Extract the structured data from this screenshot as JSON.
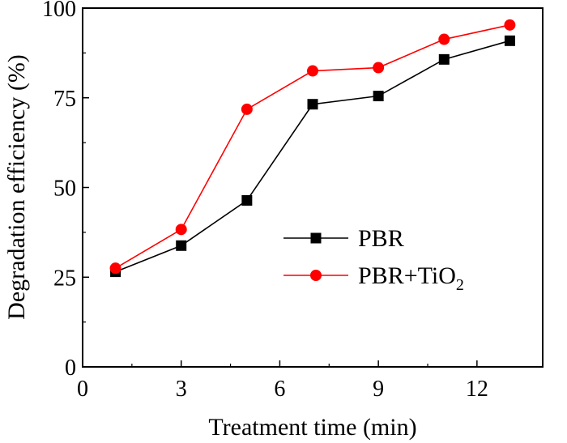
{
  "chart_data": {
    "type": "line",
    "title": "",
    "xlabel": "Treatment time (min)",
    "ylabel": "Degradation efficiency (%)",
    "xlim": [
      0,
      14
    ],
    "ylim": [
      0,
      100
    ],
    "xticks": [
      0,
      3,
      6,
      9,
      12
    ],
    "yticks": [
      0,
      25,
      50,
      75,
      100
    ],
    "grid": false,
    "legend_position": "center-right",
    "series": [
      {
        "name": "PBR",
        "color": "#000000",
        "marker": "square",
        "x": [
          1,
          3,
          5,
          7,
          9,
          11,
          13
        ],
        "values": [
          26.5,
          33.8,
          46.4,
          73.2,
          75.5,
          85.7,
          90.9
        ]
      },
      {
        "name": "PBR+TiO",
        "name_subscript": "2",
        "color": "#ff0000",
        "marker": "circle",
        "x": [
          1,
          3,
          5,
          7,
          9,
          11,
          13
        ],
        "values": [
          27.5,
          38.3,
          71.8,
          82.5,
          83.4,
          91.3,
          95.3
        ]
      }
    ]
  }
}
